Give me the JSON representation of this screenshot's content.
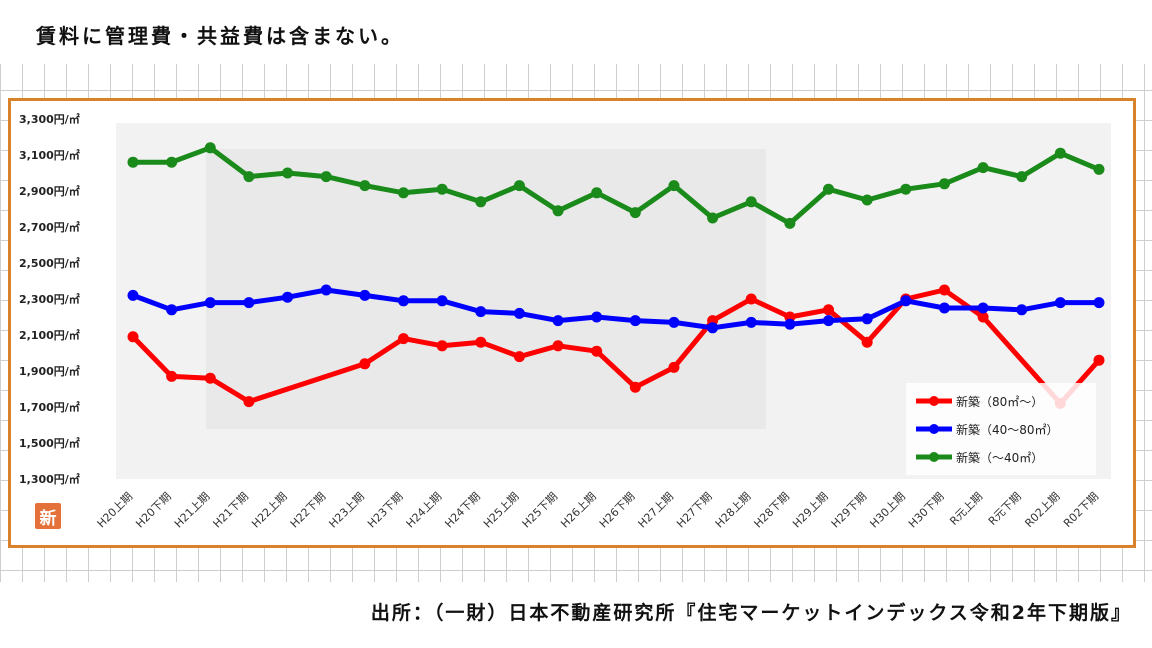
{
  "header": {
    "note": "賃料に管理費・共益費は含まない。"
  },
  "footer": {
    "source": "出所：（一財）日本不動産研究所『住宅マーケットインデックス令和2年下期版』"
  },
  "badge": {
    "text": "新"
  },
  "chart_data": {
    "type": "line",
    "categories": [
      "H20上期",
      "H20下期",
      "H21上期",
      "H21下期",
      "H22上期",
      "H22下期",
      "H23上期",
      "H23下期",
      "H24上期",
      "H24下期",
      "H25上期",
      "H25下期",
      "H26上期",
      "H26下期",
      "H27上期",
      "H27下期",
      "H28上期",
      "H28下期",
      "H29上期",
      "H29下期",
      "H30上期",
      "H30下期",
      "R元上期",
      "R元下期",
      "R02上期",
      "R02下期"
    ],
    "y_tick_labels": [
      "3,300円/㎡",
      "3,100円/㎡",
      "2,900円/㎡",
      "2,700円/㎡",
      "2,500円/㎡",
      "2,300円/㎡",
      "2,100円/㎡",
      "1,900円/㎡",
      "1,700円/㎡",
      "1,500円/㎡",
      "1,300円/㎡"
    ],
    "y_ticks": [
      3300,
      3100,
      2900,
      2700,
      2500,
      2300,
      2100,
      1900,
      1700,
      1500,
      1300
    ],
    "ylim": [
      1300,
      3300
    ],
    "grid": false,
    "legend_position": "bottom-right",
    "series": [
      {
        "name": "新築（80㎡～）",
        "color": "#ff0000",
        "values": [
          2090,
          1870,
          1860,
          1730,
          null,
          null,
          1940,
          2080,
          2040,
          2060,
          1980,
          2040,
          2010,
          1810,
          1920,
          2180,
          2300,
          2200,
          2240,
          2060,
          2300,
          2350,
          2200,
          null,
          1720,
          1960
        ]
      },
      {
        "name": "新築（40～80㎡）",
        "color": "#0000ff",
        "values": [
          2320,
          2240,
          2280,
          2280,
          2310,
          2350,
          2320,
          2290,
          2290,
          2230,
          2220,
          2180,
          2200,
          2180,
          2170,
          2140,
          2170,
          2160,
          2180,
          2190,
          2290,
          2250,
          2250,
          2240,
          2280,
          2280
        ]
      },
      {
        "name": "新築（～40㎡）",
        "color": "#1a8a1a",
        "values": [
          3060,
          3060,
          3140,
          2980,
          3000,
          2980,
          2930,
          2890,
          2910,
          2840,
          2930,
          2790,
          2890,
          2780,
          2930,
          2750,
          2840,
          2720,
          2910,
          2850,
          2910,
          2940,
          3030,
          2980,
          3110,
          3020
        ]
      }
    ]
  }
}
